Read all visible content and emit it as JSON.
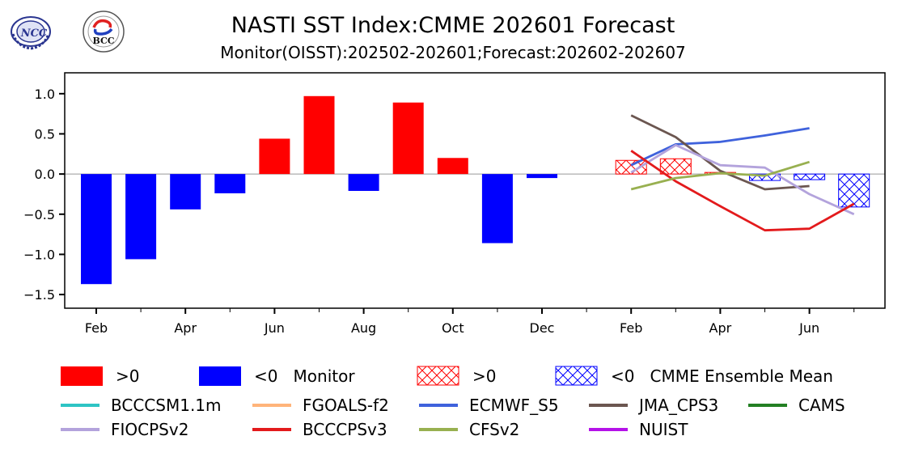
{
  "header": {
    "title": "NASTI SST Index:CMME 202601 Forecast",
    "subtitle": "Monitor(OISST):202502-202601;Forecast:202602-202607",
    "logos": [
      {
        "name": "ncc-logo",
        "text": "NCC"
      },
      {
        "name": "bcc-logo",
        "text": "BCC"
      }
    ]
  },
  "chart_data": {
    "type": "bar",
    "title": "NASTI SST Index:CMME 202601 Forecast",
    "subtitle": "Monitor(OISST):202502-202601;Forecast:202602-202607",
    "xlabel": "",
    "ylabel": "",
    "ylim": [
      -1.67,
      1.26
    ],
    "grid": false,
    "zero_line": true,
    "categories": [
      "Feb",
      "Mar",
      "Apr",
      "May",
      "Jun",
      "Jul",
      "Aug",
      "Sep",
      "Oct",
      "Nov",
      "Dec",
      "Jan",
      "Feb",
      "Mar",
      "Apr",
      "May",
      "Jun",
      "Jul"
    ],
    "x_tick_labels": [
      {
        "index": 0,
        "label": "Feb"
      },
      {
        "index": 2,
        "label": "Apr"
      },
      {
        "index": 4,
        "label": "Jun"
      },
      {
        "index": 6,
        "label": "Aug"
      },
      {
        "index": 8,
        "label": "Oct"
      },
      {
        "index": 10,
        "label": "Dec"
      },
      {
        "index": 12,
        "label": "Feb"
      },
      {
        "index": 14,
        "label": "Apr"
      },
      {
        "index": 16,
        "label": "Jun"
      }
    ],
    "y_ticks": [
      1.0,
      0.5,
      0.0,
      -0.5,
      -1.0,
      -1.5
    ],
    "y_tick_labels": [
      "1.0",
      "0.5",
      "0.0",
      "−0.5",
      "−1.0",
      "−1.5"
    ],
    "monitor": {
      "name": "Monitor",
      "start_index": 0,
      "values": [
        -1.37,
        -1.06,
        -0.44,
        -0.24,
        0.44,
        0.97,
        -0.21,
        0.89,
        0.2,
        -0.86,
        -0.05,
        0.0
      ]
    },
    "ensemble_mean": {
      "name": "CMME Ensemble Mean",
      "start_index": 12,
      "values": [
        0.17,
        0.19,
        0.02,
        -0.08,
        -0.07,
        -0.41
      ]
    },
    "models": [
      {
        "name": "BCCCSM1.1m",
        "color": "#2ec4c4",
        "start_index": 12,
        "values": []
      },
      {
        "name": "FGOALS-f2",
        "color": "#ffb47a",
        "start_index": 12,
        "values": []
      },
      {
        "name": "ECMWF_S5",
        "color": "#3f62dc",
        "start_index": 12,
        "values": [
          0.11,
          0.37,
          0.4,
          0.48,
          0.57
        ]
      },
      {
        "name": "JMA_CPS3",
        "color": "#6b5650",
        "start_index": 12,
        "values": [
          0.73,
          0.46,
          0.04,
          -0.19,
          -0.15
        ]
      },
      {
        "name": "CAMS",
        "color": "#238023",
        "start_index": 12,
        "values": []
      },
      {
        "name": "FIOCPSv2",
        "color": "#b3a3dc",
        "start_index": 12,
        "values": [
          0.02,
          0.36,
          0.11,
          0.08,
          -0.25,
          -0.5
        ]
      },
      {
        "name": "BCCCPSv3",
        "color": "#e31a1c",
        "start_index": 12,
        "values": [
          0.29,
          -0.09,
          -0.4,
          -0.7,
          -0.68,
          -0.37
        ]
      },
      {
        "name": "CFSv2",
        "color": "#98b050",
        "start_index": 12,
        "values": [
          -0.19,
          -0.05,
          0.01,
          -0.02,
          0.15
        ]
      },
      {
        "name": "NUIST",
        "color": "#b412e8",
        "start_index": 12,
        "values": []
      }
    ],
    "colors": {
      "positive": "#ff0000",
      "negative": "#0000ff",
      "zero_line": "#999999"
    }
  },
  "legend": {
    "placement": "bottom",
    "row1": [
      {
        "label": ">0",
        "kind": "solid",
        "color": "#ff0000"
      },
      {
        "label": "<0   Monitor",
        "kind": "solid",
        "color": "#0000ff"
      },
      {
        "label": ">0",
        "kind": "hatch",
        "color": "#ff0000"
      },
      {
        "label": "<0   CMME Ensemble Mean",
        "kind": "hatch",
        "color": "#0000ff"
      }
    ],
    "row2": [
      {
        "label": "BCCCSM1.1m",
        "color": "#2ec4c4"
      },
      {
        "label": "FGOALS-f2",
        "color": "#ffb47a"
      },
      {
        "label": "ECMWF_S5",
        "color": "#3f62dc"
      },
      {
        "label": "JMA_CPS3",
        "color": "#6b5650"
      },
      {
        "label": "CAMS",
        "color": "#238023"
      }
    ],
    "row3": [
      {
        "label": "FIOCPSv2",
        "color": "#b3a3dc"
      },
      {
        "label": "BCCCPSv3",
        "color": "#e31a1c"
      },
      {
        "label": "CFSv2",
        "color": "#98b050"
      },
      {
        "label": "NUIST",
        "color": "#b412e8"
      }
    ]
  }
}
